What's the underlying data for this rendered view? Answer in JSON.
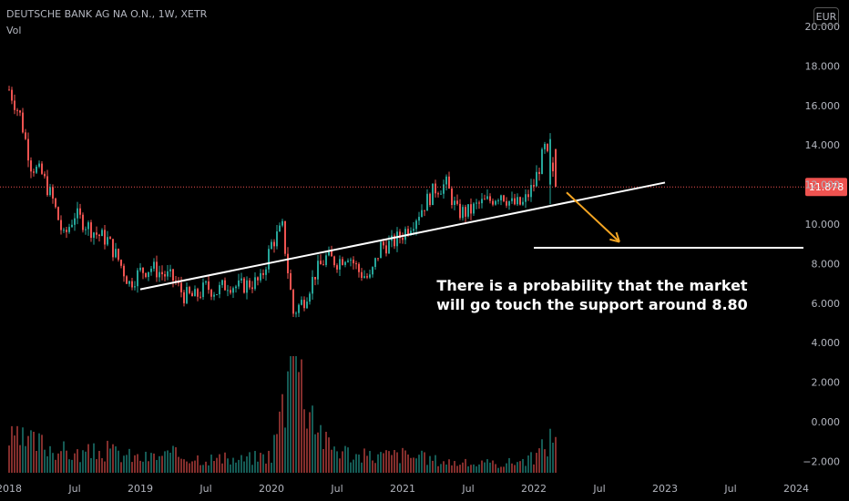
{
  "header": {
    "symbol_line": "DEUTSCHE BANK AG NA O.N., 1W, XETR",
    "volume_label": "Vol",
    "currency": "EUR"
  },
  "annotation": {
    "line1": "There is a probability that the market",
    "line2": "will go touch the support around 8.80"
  },
  "colors": {
    "background": "#000000",
    "up": "#26a69a",
    "down": "#ef5350",
    "trendline": "#ffffff",
    "arrow": "#f5a623",
    "price_badge": "#ef5350",
    "axis_text": "#b2b5be"
  },
  "chart_data": {
    "type": "candlestick",
    "title": "DEUTSCHE BANK AG NA O.N., 1W, XETR",
    "y_axis_ticks": [
      20.0,
      18.0,
      16.0,
      14.0,
      12.0,
      10.0,
      8.0,
      6.0,
      4.0,
      2.0,
      0.0,
      -2.0
    ],
    "y_axis_labels": [
      "20.000",
      "18.000",
      "16.000",
      "14.000",
      "12.000",
      "10.000",
      "8.000",
      "6.000",
      "4.000",
      "2.000",
      "0.000",
      "−2.000"
    ],
    "ylim": [
      -2.7,
      20.6
    ],
    "x_axis_labels": [
      "2018",
      "Jul",
      "2019",
      "Jul",
      "2020",
      "Jul",
      "2021",
      "Jul",
      "2022",
      "Jul",
      "2023",
      "Jul",
      "2024"
    ],
    "x_axis_dates": [
      "2018-01",
      "2018-07",
      "2019-01",
      "2019-07",
      "2020-01",
      "2020-07",
      "2021-01",
      "2021-07",
      "2022-01",
      "2022-07",
      "2023-01",
      "2023-07",
      "2024-01"
    ],
    "last_price": 11.878,
    "last_price_label": "11.878",
    "price_series_weekly_close_approx": [
      {
        "date": "2018-01",
        "value": 16.8
      },
      {
        "date": "2018-02",
        "value": 15.5
      },
      {
        "date": "2018-03",
        "value": 13.0
      },
      {
        "date": "2018-04",
        "value": 12.5
      },
      {
        "date": "2018-05",
        "value": 11.2
      },
      {
        "date": "2018-06",
        "value": 9.3
      },
      {
        "date": "2018-07",
        "value": 10.5
      },
      {
        "date": "2018-08",
        "value": 10.0
      },
      {
        "date": "2018-09",
        "value": 9.5
      },
      {
        "date": "2018-10",
        "value": 9.2
      },
      {
        "date": "2018-11",
        "value": 8.2
      },
      {
        "date": "2018-12",
        "value": 7.0
      },
      {
        "date": "2019-01",
        "value": 7.6
      },
      {
        "date": "2019-02",
        "value": 7.8
      },
      {
        "date": "2019-03",
        "value": 7.5
      },
      {
        "date": "2019-04",
        "value": 7.2
      },
      {
        "date": "2019-05",
        "value": 6.4
      },
      {
        "date": "2019-06",
        "value": 6.3
      },
      {
        "date": "2019-07",
        "value": 6.8
      },
      {
        "date": "2019-08",
        "value": 6.6
      },
      {
        "date": "2019-09",
        "value": 7.0
      },
      {
        "date": "2019-10",
        "value": 6.8
      },
      {
        "date": "2019-11",
        "value": 7.0
      },
      {
        "date": "2019-12",
        "value": 7.1
      },
      {
        "date": "2020-01",
        "value": 9.0
      },
      {
        "date": "2020-02",
        "value": 9.8
      },
      {
        "date": "2020-03",
        "value": 5.5
      },
      {
        "date": "2020-04",
        "value": 6.2
      },
      {
        "date": "2020-05",
        "value": 7.5
      },
      {
        "date": "2020-06",
        "value": 8.3
      },
      {
        "date": "2020-07",
        "value": 8.1
      },
      {
        "date": "2020-08",
        "value": 8.5
      },
      {
        "date": "2020-09",
        "value": 7.6
      },
      {
        "date": "2020-10",
        "value": 7.2
      },
      {
        "date": "2020-11",
        "value": 8.9
      },
      {
        "date": "2020-12",
        "value": 9.0
      },
      {
        "date": "2021-01",
        "value": 9.5
      },
      {
        "date": "2021-02",
        "value": 10.2
      },
      {
        "date": "2021-03",
        "value": 11.0
      },
      {
        "date": "2021-04",
        "value": 11.8
      },
      {
        "date": "2021-05",
        "value": 12.0
      },
      {
        "date": "2021-06",
        "value": 10.6
      },
      {
        "date": "2021-07",
        "value": 10.6
      },
      {
        "date": "2021-08",
        "value": 11.0
      },
      {
        "date": "2021-09",
        "value": 11.2
      },
      {
        "date": "2021-10",
        "value": 11.6
      },
      {
        "date": "2021-11",
        "value": 11.0
      },
      {
        "date": "2021-12",
        "value": 11.0
      },
      {
        "date": "2022-01",
        "value": 12.0
      },
      {
        "date": "2022-02",
        "value": 13.8
      },
      {
        "date": "2022-03",
        "value": 11.878
      }
    ],
    "volume_series_approx": [
      {
        "date": "2018-01",
        "value": 0.9
      },
      {
        "date": "2018-04",
        "value": 0.8
      },
      {
        "date": "2018-07",
        "value": 0.5
      },
      {
        "date": "2018-10",
        "value": 0.6
      },
      {
        "date": "2019-01",
        "value": 0.4
      },
      {
        "date": "2019-04",
        "value": 0.5
      },
      {
        "date": "2019-07",
        "value": 0.4
      },
      {
        "date": "2019-10",
        "value": 0.35
      },
      {
        "date": "2020-01",
        "value": 0.5
      },
      {
        "date": "2020-03",
        "value": 3.2
      },
      {
        "date": "2020-06",
        "value": 0.8
      },
      {
        "date": "2020-09",
        "value": 0.45
      },
      {
        "date": "2021-01",
        "value": 0.5
      },
      {
        "date": "2021-04",
        "value": 0.35
      },
      {
        "date": "2021-07",
        "value": 0.25
      },
      {
        "date": "2021-10",
        "value": 0.25
      },
      {
        "date": "2022-01",
        "value": 0.4
      },
      {
        "date": "2022-03",
        "value": 1.1
      }
    ],
    "drawings": {
      "rising_support_line": {
        "from": {
          "date": "2019-01",
          "value": 6.7
        },
        "to": {
          "date": "2023-01",
          "value": 12.1
        }
      },
      "horizontal_support_line": {
        "from": {
          "date": "2022-01",
          "value": 8.8
        },
        "to": {
          "date": "2024-01",
          "value": 8.8
        }
      },
      "projection_arrow": {
        "from": {
          "date": "2022-03",
          "value": 11.6
        },
        "to": {
          "date": "2022-09",
          "value": 9.1
        }
      }
    },
    "grid": false
  }
}
